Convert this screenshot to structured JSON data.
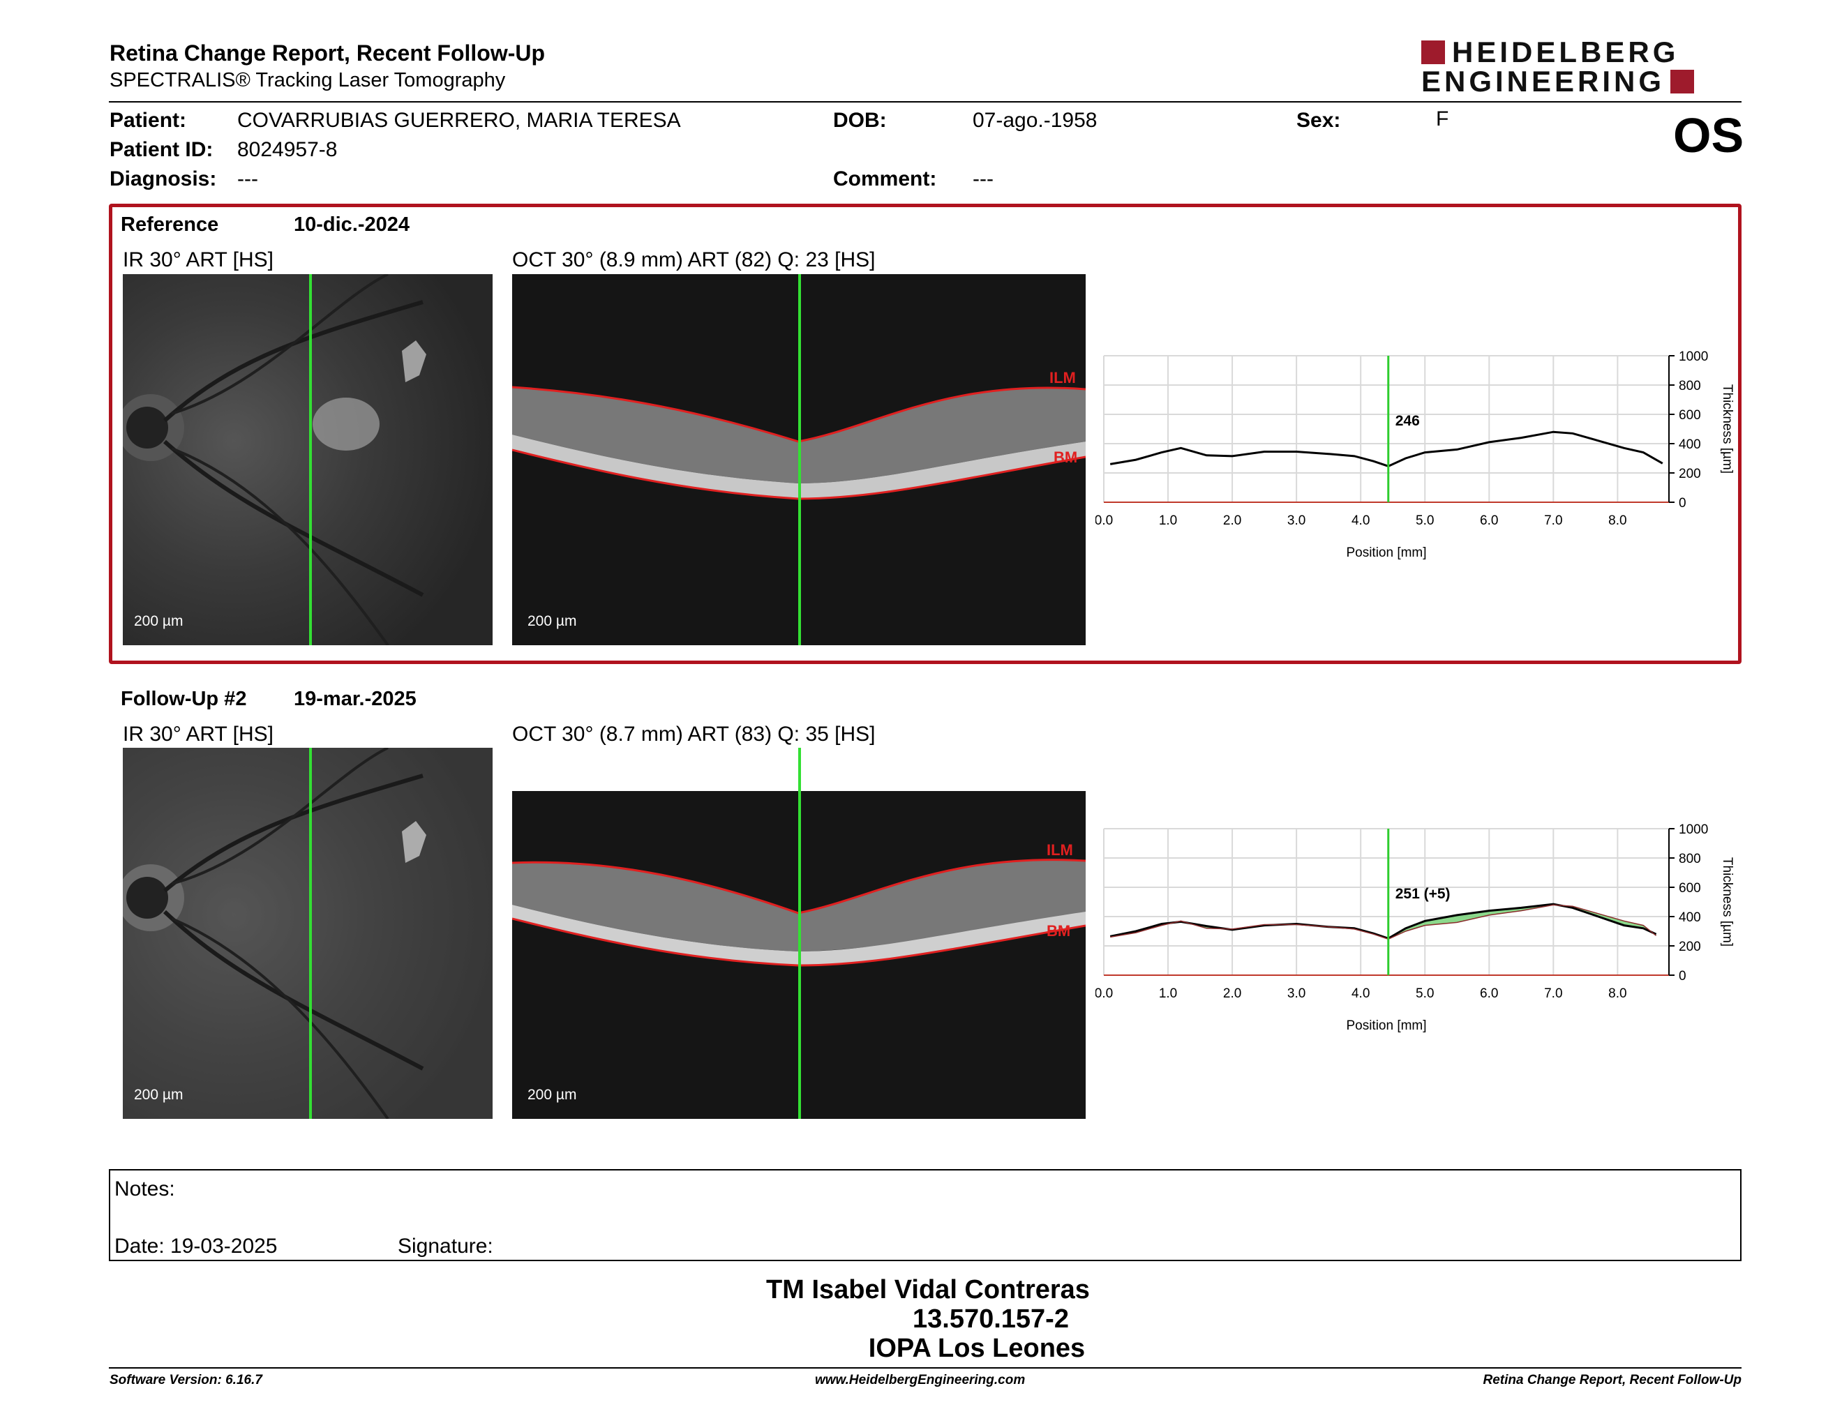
{
  "header": {
    "title": "Retina Change Report, Recent Follow-Up",
    "subtitle": "SPECTRALIS® Tracking Laser Tomography",
    "logo_line1": "HEIDELBERG",
    "logo_line2": "ENGINEERING",
    "eye": "OS"
  },
  "patient": {
    "patient_label": "Patient:",
    "patient_value": "COVARRUBIAS GUERRERO, MARIA TERESA",
    "id_label": "Patient ID:",
    "id_value": "8024957-8",
    "diagnosis_label": "Diagnosis:",
    "diagnosis_value": "---",
    "dob_label": "DOB:",
    "dob_value": "07-ago.-1958",
    "comment_label": "Comment:",
    "comment_value": "---",
    "sex_label": "Sex:",
    "sex_value": "F"
  },
  "reference": {
    "label": "Reference",
    "date": "10-dic.-2024",
    "ir_label": "IR 30° ART [HS]",
    "oct_label": "OCT 30° (8.9 mm) ART (82) Q: 23 [HS]",
    "scale_ir": "200 µm",
    "scale_oct": "200 µm",
    "ilm": "ILM",
    "bm": "BM"
  },
  "followup": {
    "label": "Follow-Up #2",
    "date": "19-mar.-2025",
    "ir_label": "IR 30° ART [HS]",
    "oct_label": "OCT 30° (8.7 mm) ART (83) Q: 35 [HS]",
    "scale_ir": "200 µm",
    "scale_oct": "200 µm",
    "ilm": "ILM",
    "bm": "BM"
  },
  "chart_data": [
    {
      "type": "line",
      "xlabel": "Position [mm]",
      "ylabel": "Thickness [µm]",
      "xlim": [
        0,
        8.8
      ],
      "ylim": [
        0,
        1000
      ],
      "xticks": [
        "0.0",
        "1.0",
        "2.0",
        "3.0",
        "4.0",
        "5.0",
        "6.0",
        "7.0",
        "8.0"
      ],
      "yticks": [
        "0",
        "200",
        "400",
        "600",
        "800",
        "1000"
      ],
      "grid": true,
      "cursor_x": 4.43,
      "cursor_label": "246",
      "series": [
        {
          "x": [
            0.1,
            0.5,
            0.9,
            1.2,
            1.6,
            2.0,
            2.5,
            3.0,
            3.5,
            3.9,
            4.2,
            4.43,
            4.7,
            5.0,
            5.5,
            6.0,
            6.5,
            7.0,
            7.3,
            7.7,
            8.1,
            8.4,
            8.7
          ],
          "y": [
            260,
            290,
            340,
            370,
            320,
            315,
            345,
            345,
            330,
            315,
            280,
            246,
            300,
            340,
            360,
            410,
            440,
            480,
            470,
            420,
            370,
            340,
            265
          ]
        }
      ]
    },
    {
      "type": "line",
      "xlabel": "Position [mm]",
      "ylabel": "Thickness [µm]",
      "xlim": [
        0,
        8.8
      ],
      "ylim": [
        0,
        1000
      ],
      "xticks": [
        "0.0",
        "1.0",
        "2.0",
        "3.0",
        "4.0",
        "5.0",
        "6.0",
        "7.0",
        "8.0"
      ],
      "yticks": [
        "0",
        "200",
        "400",
        "600",
        "800",
        "1000"
      ],
      "grid": true,
      "cursor_x": 4.43,
      "cursor_label": "251 (+5)",
      "series": [
        {
          "x": [
            0.1,
            0.5,
            0.9,
            1.2,
            1.6,
            2.0,
            2.5,
            3.0,
            3.5,
            3.9,
            4.2,
            4.43,
            4.7,
            5.0,
            5.5,
            6.0,
            6.5,
            7.0,
            7.3,
            7.7,
            8.1,
            8.4,
            8.6
          ],
          "y": [
            265,
            300,
            350,
            365,
            335,
            310,
            340,
            350,
            330,
            320,
            285,
            251,
            320,
            370,
            410,
            440,
            460,
            485,
            460,
            400,
            340,
            320,
            280
          ]
        },
        {
          "x": [
            0.1,
            0.5,
            0.9,
            1.2,
            1.6,
            2.0,
            2.5,
            3.0,
            3.5,
            3.9,
            4.2,
            4.43,
            4.7,
            5.0,
            5.5,
            6.0,
            6.5,
            7.0,
            7.3,
            7.7,
            8.1,
            8.4,
            8.6
          ],
          "y": [
            260,
            290,
            340,
            370,
            320,
            315,
            345,
            345,
            330,
            315,
            280,
            246,
            300,
            340,
            360,
            410,
            440,
            480,
            470,
            420,
            370,
            340,
            270
          ]
        }
      ],
      "colors": {
        "line": "#000000",
        "diff_fill": "#6fcf6f",
        "cursor": "#2ecc2e",
        "baseline": "#c0392b"
      }
    }
  ],
  "notes": {
    "notes_label": "Notes:",
    "date_label": "Date: 19-03-2025",
    "signature_label": "Signature:"
  },
  "signature_block": {
    "name": "TM Isabel Vidal Contreras",
    "rut": "13.570.157-2",
    "clinic": "IOPA Los Leones"
  },
  "footer": {
    "software": "Software Version: 6.16.7",
    "website": "www.HeidelbergEngineering.com",
    "report": "Retina Change Report, Recent Follow-Up"
  }
}
